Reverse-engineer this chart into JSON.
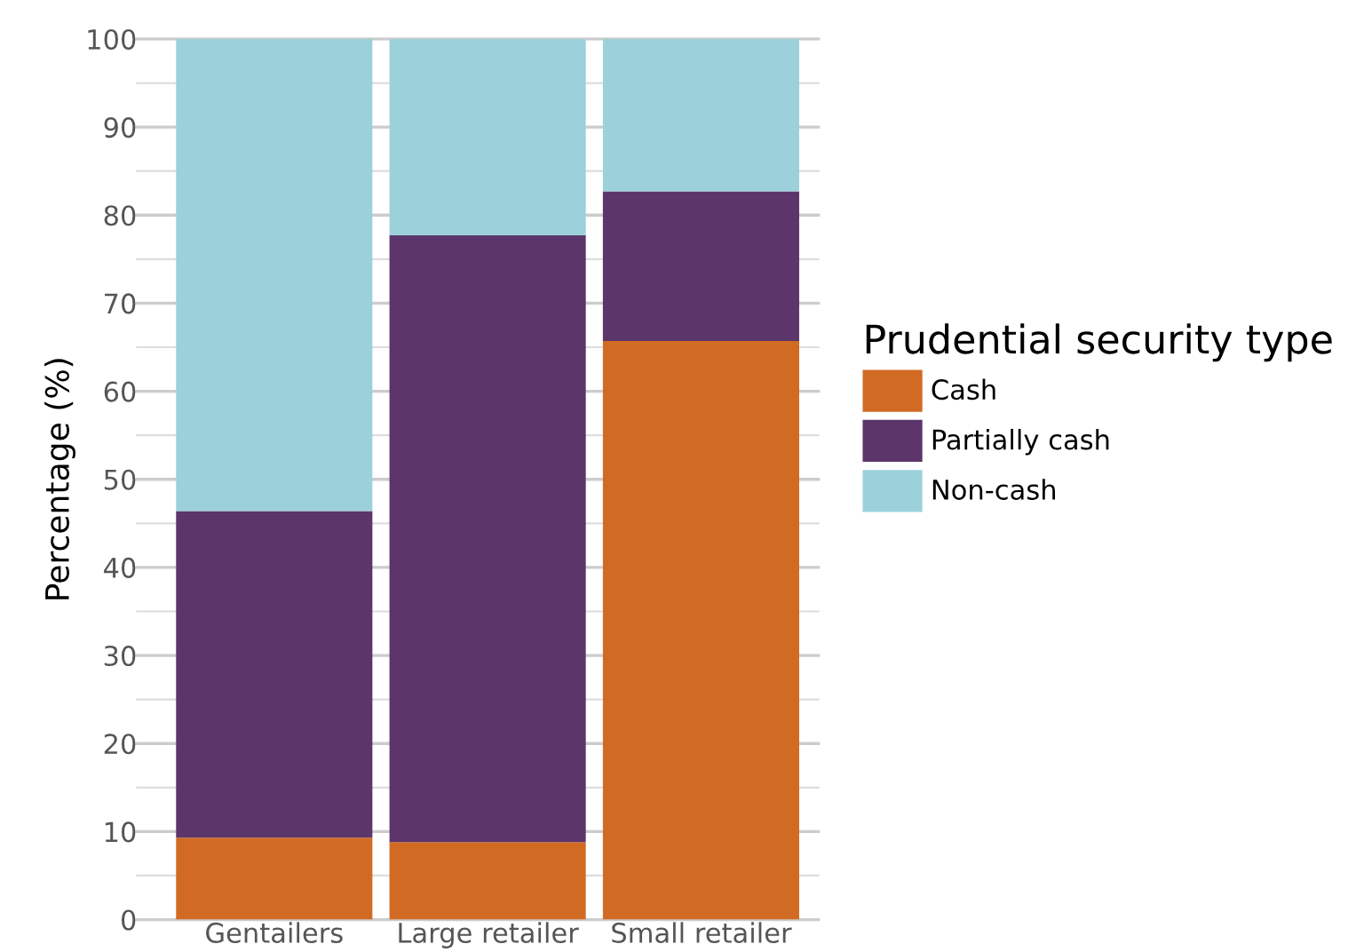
{
  "chart_data": {
    "type": "bar",
    "stacked": true,
    "ylabel": "Percentage (%)",
    "legend_title": "Prudential security type",
    "categories": [
      "Gentailers",
      "Large retailer",
      "Small retailer"
    ],
    "series": [
      {
        "name": "Cash",
        "color": "#d16b24",
        "values": [
          9.3,
          8.8,
          65.7
        ]
      },
      {
        "name": "Partially cash",
        "color": "#5c356b",
        "values": [
          37.1,
          68.9,
          17.0
        ]
      },
      {
        "name": "Non-cash",
        "color": "#9cd1db",
        "values": [
          53.6,
          22.3,
          17.3
        ]
      }
    ],
    "ylim": [
      0,
      100
    ],
    "yticks": [
      0,
      {
        "value": 5,
        "label": null
      },
      10,
      {
        "value": 15,
        "label": null
      },
      20,
      {
        "value": 25,
        "label": null
      },
      30,
      {
        "value": 35,
        "label": null
      },
      40,
      {
        "value": 45,
        "label": null
      },
      50,
      {
        "value": 55,
        "label": null
      },
      60,
      {
        "value": 65,
        "label": null
      },
      70,
      {
        "value": 75,
        "label": null
      },
      80,
      {
        "value": 85,
        "label": null
      },
      90,
      {
        "value": 95,
        "label": null
      },
      100
    ],
    "grid": "y",
    "legend": "right"
  }
}
